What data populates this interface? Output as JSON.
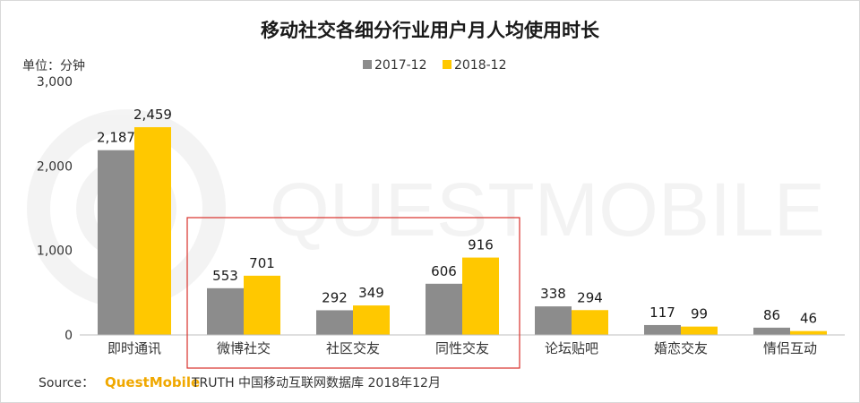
{
  "chart_data": {
    "type": "bar",
    "title": "移动社交各细分行业用户月人均使用时长",
    "unit_label": "单位：分钟",
    "categories": [
      "即时通讯",
      "微博社交",
      "社区交友",
      "同性交友",
      "论坛贴吧",
      "婚恋交友",
      "情侣互动"
    ],
    "series": [
      {
        "name": "2017-12",
        "color": "#8c8c8c",
        "values": [
          2187,
          553,
          292,
          606,
          338,
          117,
          86
        ]
      },
      {
        "name": "2018-12",
        "color": "#ffc800",
        "values": [
          2459,
          701,
          349,
          916,
          294,
          99,
          46
        ]
      }
    ],
    "ylim": [
      0,
      3000
    ],
    "yticks": [
      0,
      1000,
      2000,
      3000
    ],
    "ytick_labels": [
      "0",
      "1,000",
      "2,000",
      "3,000"
    ],
    "value_labels": [
      [
        "2,187",
        "553",
        "292",
        "606",
        "338",
        "117",
        "86"
      ],
      [
        "2,459",
        "701",
        "349",
        "916",
        "294",
        "99",
        "46"
      ]
    ],
    "legend_position": "top-center",
    "grid": false,
    "highlight": {
      "from_category": 1,
      "to_category": 3,
      "color": "#d9302a"
    }
  },
  "watermark": "QUESTMOBILE",
  "source": {
    "label": "Source：",
    "brand": "QuestMobile",
    "text": "TRUTH 中国移动互联网数据库 2018年12月"
  }
}
